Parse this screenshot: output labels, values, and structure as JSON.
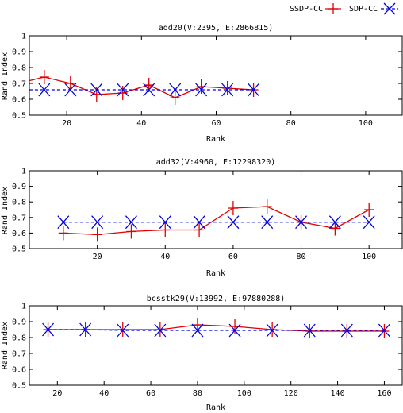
{
  "legend": {
    "position": "top-right",
    "entries": [
      {
        "label": "SSDP-CC",
        "color": "#e00000",
        "marker": "plus",
        "line": "solid"
      },
      {
        "label": "SDP-CC",
        "color": "#0000e0",
        "marker": "x",
        "line": "dashed"
      }
    ]
  },
  "chart_data": [
    {
      "type": "line",
      "title": "add20(V:2395, E:2866815)",
      "xlabel": "Rank",
      "ylabel": "Rand Index",
      "xlim": [
        10,
        110
      ],
      "ylim": [
        0.5,
        1
      ],
      "xticks": [
        20,
        40,
        60,
        80,
        100
      ],
      "yticks": [
        0.5,
        0.6,
        0.7,
        0.8,
        0.9,
        1
      ],
      "grid": false,
      "series": [
        {
          "name": "SSDP-CC",
          "x": [
            7,
            14,
            21,
            28,
            35,
            42,
            49,
            56,
            63,
            70
          ],
          "values": [
            0.7,
            0.74,
            0.7,
            0.63,
            0.64,
            0.69,
            0.61,
            0.68,
            0.67,
            0.66
          ]
        },
        {
          "name": "SDP-CC",
          "x": [
            7,
            14,
            21,
            28,
            35,
            42,
            49,
            56,
            63,
            70
          ],
          "values": [
            0.66,
            0.66,
            0.66,
            0.66,
            0.66,
            0.66,
            0.66,
            0.66,
            0.66,
            0.66
          ]
        }
      ]
    },
    {
      "type": "line",
      "title": "add32(V:4960, E:12298320)",
      "xlabel": "Rank",
      "ylabel": "Rand Index",
      "xlim": [
        0,
        110
      ],
      "ylim": [
        0.5,
        1
      ],
      "xticks": [
        20,
        40,
        60,
        80,
        100
      ],
      "yticks": [
        0.5,
        0.6,
        0.7,
        0.8,
        0.9,
        1
      ],
      "grid": false,
      "series": [
        {
          "name": "SSDP-CC",
          "x": [
            10,
            20,
            30,
            40,
            50,
            60,
            70,
            80,
            90,
            100
          ],
          "values": [
            0.6,
            0.59,
            0.61,
            0.62,
            0.62,
            0.76,
            0.77,
            0.67,
            0.63,
            0.75
          ]
        },
        {
          "name": "SDP-CC",
          "x": [
            10,
            20,
            30,
            40,
            50,
            60,
            70,
            80,
            90,
            100
          ],
          "values": [
            0.67,
            0.67,
            0.67,
            0.67,
            0.67,
            0.67,
            0.67,
            0.67,
            0.67,
            0.67
          ]
        }
      ]
    },
    {
      "type": "line",
      "title": "bcsstk29(V:13992, E:97880288)",
      "xlabel": "Rank",
      "ylabel": "Rand Index",
      "xlim": [
        8,
        168
      ],
      "ylim": [
        0.5,
        1
      ],
      "xticks": [
        20,
        40,
        60,
        80,
        100,
        120,
        140,
        160
      ],
      "yticks": [
        0.5,
        0.6,
        0.7,
        0.8,
        0.9,
        1
      ],
      "grid": false,
      "series": [
        {
          "name": "SSDP-CC",
          "x": [
            16,
            32,
            48,
            64,
            80,
            96,
            112,
            128,
            144,
            160
          ],
          "values": [
            0.85,
            0.85,
            0.85,
            0.85,
            0.88,
            0.87,
            0.85,
            0.84,
            0.84,
            0.84
          ]
        },
        {
          "name": "SDP-CC",
          "x": [
            16,
            32,
            48,
            64,
            80,
            96,
            112,
            128,
            144,
            160
          ],
          "values": [
            0.85,
            0.85,
            0.845,
            0.845,
            0.845,
            0.845,
            0.845,
            0.845,
            0.845,
            0.845
          ]
        }
      ]
    }
  ]
}
